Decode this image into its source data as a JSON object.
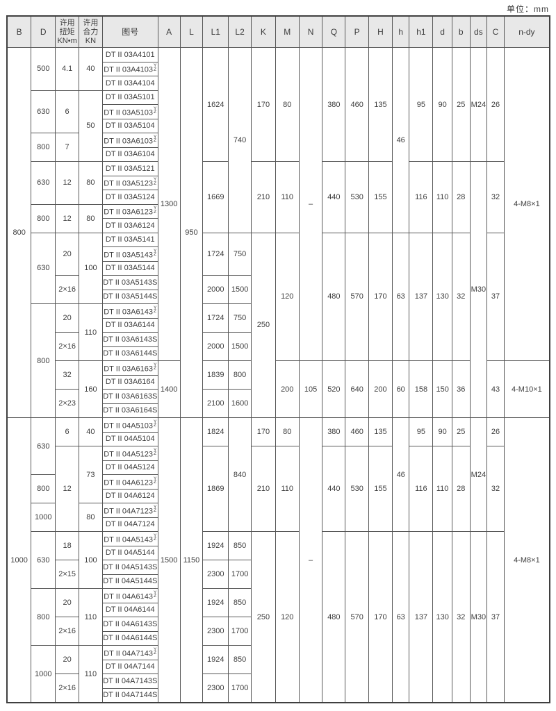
{
  "page": {
    "unit_label": "单位：mm"
  },
  "table": {
    "yz_top": "Y",
    "yz_bottom": "Z",
    "columns": [
      {
        "key": "B",
        "label": "B"
      },
      {
        "key": "D",
        "label": "D"
      },
      {
        "key": "torque",
        "label": [
          "许用",
          "扭矩",
          "KN•m"
        ]
      },
      {
        "key": "force",
        "label": [
          "许用",
          "合力",
          "KN"
        ]
      },
      {
        "key": "drawing-no",
        "label": "图号"
      },
      {
        "key": "A",
        "label": "A"
      },
      {
        "key": "L",
        "label": "L"
      },
      {
        "key": "L1",
        "label": "L1"
      },
      {
        "key": "L2",
        "label": "L2"
      },
      {
        "key": "K",
        "label": "K"
      },
      {
        "key": "M",
        "label": "M"
      },
      {
        "key": "N",
        "label": "N"
      },
      {
        "key": "Q",
        "label": "Q"
      },
      {
        "key": "P",
        "label": "P"
      },
      {
        "key": "H",
        "label": "H"
      },
      {
        "key": "h",
        "label": "h"
      },
      {
        "key": "h1",
        "label": "h1"
      },
      {
        "key": "d",
        "label": "d"
      },
      {
        "key": "b",
        "label": "b"
      },
      {
        "key": "ds",
        "label": "ds"
      },
      {
        "key": "C",
        "label": "C"
      },
      {
        "key": "n-dy",
        "label": "n-dy"
      }
    ],
    "rows": [
      [
        {
          "t": "800",
          "rs": 26
        },
        {
          "t": "500",
          "rs": 3
        },
        {
          "t": "4.1",
          "rs": 3
        },
        {
          "t": "40",
          "rs": 3
        },
        {
          "t": "DT II 03A4101",
          "g": 1
        },
        {
          "t": "1300",
          "rs": 22
        },
        {
          "t": "950",
          "rs": 26
        },
        {
          "t": "1624",
          "rs": 8
        },
        {
          "t": "740",
          "rs": 13
        },
        {
          "t": "170",
          "rs": 8
        },
        {
          "t": "80",
          "rs": 8
        },
        {
          "t": "–",
          "rs": 22
        },
        {
          "t": "380",
          "rs": 8
        },
        {
          "t": "460",
          "rs": 8
        },
        {
          "t": "135",
          "rs": 8
        },
        {
          "t": "46",
          "rs": 13
        },
        {
          "t": "95",
          "rs": 8
        },
        {
          "t": "90",
          "rs": 8
        },
        {
          "t": "25",
          "rs": 8
        },
        {
          "t": "M24",
          "rs": 8
        },
        {
          "t": "26",
          "rs": 8
        },
        {
          "t": "4-M8×1",
          "rs": 22
        }
      ],
      [
        {
          "t": "DT II 03A4103",
          "g": 1,
          "yz": 1
        }
      ],
      [
        {
          "t": "DT II 03A4104",
          "g": 1
        }
      ],
      [
        {
          "t": "630",
          "rs": 3
        },
        {
          "t": "6",
          "rs": 3
        },
        {
          "t": "50",
          "rs": 5
        },
        {
          "t": "DT II 03A5101",
          "g": 1
        }
      ],
      [
        {
          "t": "DT II 03A5103",
          "g": 1,
          "yz": 1
        }
      ],
      [
        {
          "t": "DT II 03A5104",
          "g": 1
        }
      ],
      [
        {
          "t": "800",
          "rs": 2
        },
        {
          "t": "7",
          "rs": 2
        },
        {
          "t": "DT II 03A6103",
          "g": 1,
          "yz": 1
        }
      ],
      [
        {
          "t": "DT II 03A6104",
          "g": 1
        }
      ],
      [
        {
          "t": "630",
          "rs": 3
        },
        {
          "t": "12",
          "rs": 3
        },
        {
          "t": "80",
          "rs": 3
        },
        {
          "t": "DT II 03A5121",
          "g": 1
        },
        {
          "t": "1669",
          "rs": 5
        },
        {
          "t": "210",
          "rs": 5
        },
        {
          "t": "110",
          "rs": 5
        },
        {
          "t": "440",
          "rs": 5
        },
        {
          "t": "530",
          "rs": 5
        },
        {
          "t": "155",
          "rs": 5
        },
        {
          "t": "116",
          "rs": 5
        },
        {
          "t": "110",
          "rs": 5
        },
        {
          "t": "28",
          "rs": 5
        },
        {
          "t": "M30",
          "rs": 18
        },
        {
          "t": "32",
          "rs": 5
        }
      ],
      [
        {
          "t": "DT II 03A5123",
          "g": 1,
          "yz": 1
        }
      ],
      [
        {
          "t": "DT II 03A5124",
          "g": 1
        }
      ],
      [
        {
          "t": "800",
          "rs": 2
        },
        {
          "t": "12",
          "rs": 2
        },
        {
          "t": "80",
          "rs": 2
        },
        {
          "t": "DT II 03A6123",
          "g": 1,
          "yz": 1
        }
      ],
      [
        {
          "t": "DT II 03A6124",
          "g": 1
        }
      ],
      [
        {
          "t": "630",
          "rs": 5
        },
        {
          "t": "20",
          "rs": 3
        },
        {
          "t": "100",
          "rs": 5
        },
        {
          "t": "DT II 03A5141",
          "g": 1
        },
        {
          "t": "1724",
          "rs": 3
        },
        {
          "t": "750",
          "rs": 3
        },
        {
          "t": "250",
          "rs": 13
        },
        {
          "t": "120",
          "rs": 9
        },
        {
          "t": "480",
          "rs": 9
        },
        {
          "t": "570",
          "rs": 9
        },
        {
          "t": "170",
          "rs": 9
        },
        {
          "t": "63",
          "rs": 9
        },
        {
          "t": "137",
          "rs": 9
        },
        {
          "t": "130",
          "rs": 9
        },
        {
          "t": "32",
          "rs": 9
        },
        {
          "t": "37",
          "rs": 9
        }
      ],
      [
        {
          "t": "DT II 03A5143",
          "g": 1,
          "yz": 1
        }
      ],
      [
        {
          "t": "DT II 03A5144",
          "g": 1
        }
      ],
      [
        {
          "t": "2×16",
          "rs": 2
        },
        {
          "t": "DT II 03A5143S",
          "g": 1
        },
        {
          "t": "2000",
          "rs": 2
        },
        {
          "t": "1500",
          "rs": 2
        }
      ],
      [
        {
          "t": "DT II 03A5144S",
          "g": 1
        }
      ],
      [
        {
          "t": "800",
          "rs": 8
        },
        {
          "t": "20",
          "rs": 2
        },
        {
          "t": "110",
          "rs": 4
        },
        {
          "t": "DT II 03A6143",
          "g": 1,
          "yz": 1
        },
        {
          "t": "1724",
          "rs": 2
        },
        {
          "t": "750",
          "rs": 2
        }
      ],
      [
        {
          "t": "DT II 03A6144",
          "g": 1
        }
      ],
      [
        {
          "t": "2×16",
          "rs": 2
        },
        {
          "t": "DT II 03A6143S",
          "g": 1
        },
        {
          "t": "2000",
          "rs": 2
        },
        {
          "t": "1500",
          "rs": 2
        }
      ],
      [
        {
          "t": "DT II 03A6144S",
          "g": 1
        }
      ],
      [
        {
          "t": "32",
          "rs": 2
        },
        {
          "t": "160",
          "rs": 4
        },
        {
          "t": "DT II 03A6163",
          "g": 1,
          "yz": 1
        },
        {
          "t": "1400",
          "rs": 4
        },
        {
          "t": "1839",
          "rs": 2
        },
        {
          "t": "800",
          "rs": 2
        },
        {
          "t": "200",
          "rs": 4
        },
        {
          "t": "105",
          "rs": 4
        },
        {
          "t": "520",
          "rs": 4
        },
        {
          "t": "640",
          "rs": 4
        },
        {
          "t": "200",
          "rs": 4
        },
        {
          "t": "60",
          "rs": 4
        },
        {
          "t": "158",
          "rs": 4
        },
        {
          "t": "150",
          "rs": 4
        },
        {
          "t": "36",
          "rs": 4
        },
        {
          "t": "43",
          "rs": 4
        },
        {
          "t": "4-M10×1",
          "rs": 4
        }
      ],
      [
        {
          "t": "DT II 03A6164",
          "g": 1
        }
      ],
      [
        {
          "t": "2×23",
          "rs": 2
        },
        {
          "t": "DT II 03A6163S",
          "g": 1
        },
        {
          "t": "2100",
          "rs": 2
        },
        {
          "t": "1600",
          "rs": 2
        }
      ],
      [
        {
          "t": "DT II 03A6164S",
          "g": 1
        }
      ],
      [
        {
          "t": "1000",
          "rs": 20
        },
        {
          "t": "630",
          "rs": 4
        },
        {
          "t": "6",
          "rs": 2
        },
        {
          "t": "40",
          "rs": 2
        },
        {
          "t": "DT II 04A5103",
          "g": 1,
          "yz": 1
        },
        {
          "t": "1500",
          "rs": 20
        },
        {
          "t": "1150",
          "rs": 20
        },
        {
          "t": "1824",
          "rs": 2
        },
        {
          "t": "840",
          "rs": 8
        },
        {
          "t": "170",
          "rs": 2
        },
        {
          "t": "80",
          "rs": 2
        },
        {
          "t": "–",
          "rs": 20
        },
        {
          "t": "380",
          "rs": 2
        },
        {
          "t": "460",
          "rs": 2
        },
        {
          "t": "135",
          "rs": 2
        },
        {
          "t": "46",
          "rs": 8
        },
        {
          "t": "95",
          "rs": 2
        },
        {
          "t": "90",
          "rs": 2
        },
        {
          "t": "25",
          "rs": 2
        },
        {
          "t": "M24",
          "rs": 8
        },
        {
          "t": "26",
          "rs": 2
        },
        {
          "t": "4-M8×1",
          "rs": 20
        }
      ],
      [
        {
          "t": "DT II 04A5104",
          "g": 1
        }
      ],
      [
        {
          "t": "12",
          "rs": 6
        },
        {
          "t": "73",
          "rs": 4
        },
        {
          "t": "DT II 04A5123",
          "g": 1,
          "yz": 1
        },
        {
          "t": "1869",
          "rs": 6
        },
        {
          "t": "210",
          "rs": 6
        },
        {
          "t": "110",
          "rs": 6
        },
        {
          "t": "440",
          "rs": 6
        },
        {
          "t": "530",
          "rs": 6
        },
        {
          "t": "155",
          "rs": 6
        },
        {
          "t": "116",
          "rs": 6
        },
        {
          "t": "110",
          "rs": 6
        },
        {
          "t": "28",
          "rs": 6
        },
        {
          "t": "32",
          "rs": 6
        }
      ],
      [
        {
          "t": "DT II 04A5124",
          "g": 1
        }
      ],
      [
        {
          "t": "800",
          "rs": 2
        },
        {
          "t": "DT II 04A6123",
          "g": 1,
          "yz": 1
        }
      ],
      [
        {
          "t": "DT II 04A6124",
          "g": 1
        }
      ],
      [
        {
          "t": "1000",
          "rs": 2
        },
        {
          "t": "80",
          "rs": 2
        },
        {
          "t": "DT II 04A7123",
          "g": 1,
          "yz": 1
        }
      ],
      [
        {
          "t": "DT II 04A7124",
          "g": 1
        }
      ],
      [
        {
          "t": "630",
          "rs": 4
        },
        {
          "t": "18",
          "rs": 2
        },
        {
          "t": "100",
          "rs": 4
        },
        {
          "t": "DT II 04A5143",
          "g": 1,
          "yz": 1
        },
        {
          "t": "1924",
          "rs": 2
        },
        {
          "t": "850",
          "rs": 2
        },
        {
          "t": "250",
          "rs": 12
        },
        {
          "t": "120",
          "rs": 12
        },
        {
          "t": "480",
          "rs": 12
        },
        {
          "t": "570",
          "rs": 12
        },
        {
          "t": "170",
          "rs": 12
        },
        {
          "t": "63",
          "rs": 12
        },
        {
          "t": "137",
          "rs": 12
        },
        {
          "t": "130",
          "rs": 12
        },
        {
          "t": "32",
          "rs": 12
        },
        {
          "t": "M30",
          "rs": 12
        },
        {
          "t": "37",
          "rs": 12
        }
      ],
      [
        {
          "t": "DT II 04A5144",
          "g": 1
        }
      ],
      [
        {
          "t": "2×15",
          "rs": 2
        },
        {
          "t": "DT II 04A5143S",
          "g": 1
        },
        {
          "t": "2300",
          "rs": 2
        },
        {
          "t": "1700",
          "rs": 2
        }
      ],
      [
        {
          "t": "DT II 04A5144S",
          "g": 1
        }
      ],
      [
        {
          "t": "800",
          "rs": 4
        },
        {
          "t": "20",
          "rs": 2
        },
        {
          "t": "110",
          "rs": 4
        },
        {
          "t": "DT II 04A6143",
          "g": 1,
          "yz": 1
        },
        {
          "t": "1924",
          "rs": 2
        },
        {
          "t": "850",
          "rs": 2
        }
      ],
      [
        {
          "t": "DT II 04A6144",
          "g": 1
        }
      ],
      [
        {
          "t": "2×16",
          "rs": 2
        },
        {
          "t": "DT II 04A6143S",
          "g": 1
        },
        {
          "t": "2300",
          "rs": 2
        },
        {
          "t": "1700",
          "rs": 2
        }
      ],
      [
        {
          "t": "DT II 04A6144S",
          "g": 1
        }
      ],
      [
        {
          "t": "1000",
          "rs": 4
        },
        {
          "t": "20",
          "rs": 2
        },
        {
          "t": "110",
          "rs": 4
        },
        {
          "t": "DT II 04A7143",
          "g": 1,
          "yz": 1
        },
        {
          "t": "1924",
          "rs": 2
        },
        {
          "t": "850",
          "rs": 2
        }
      ],
      [
        {
          "t": "DT II 04A7144",
          "g": 1
        }
      ],
      [
        {
          "t": "2×16",
          "rs": 2
        },
        {
          "t": "DT II 04A7143S",
          "g": 1
        },
        {
          "t": "2300",
          "rs": 2
        },
        {
          "t": "1700",
          "rs": 2
        }
      ],
      [
        {
          "t": "DT II 04A7144S",
          "g": 1
        }
      ]
    ]
  }
}
